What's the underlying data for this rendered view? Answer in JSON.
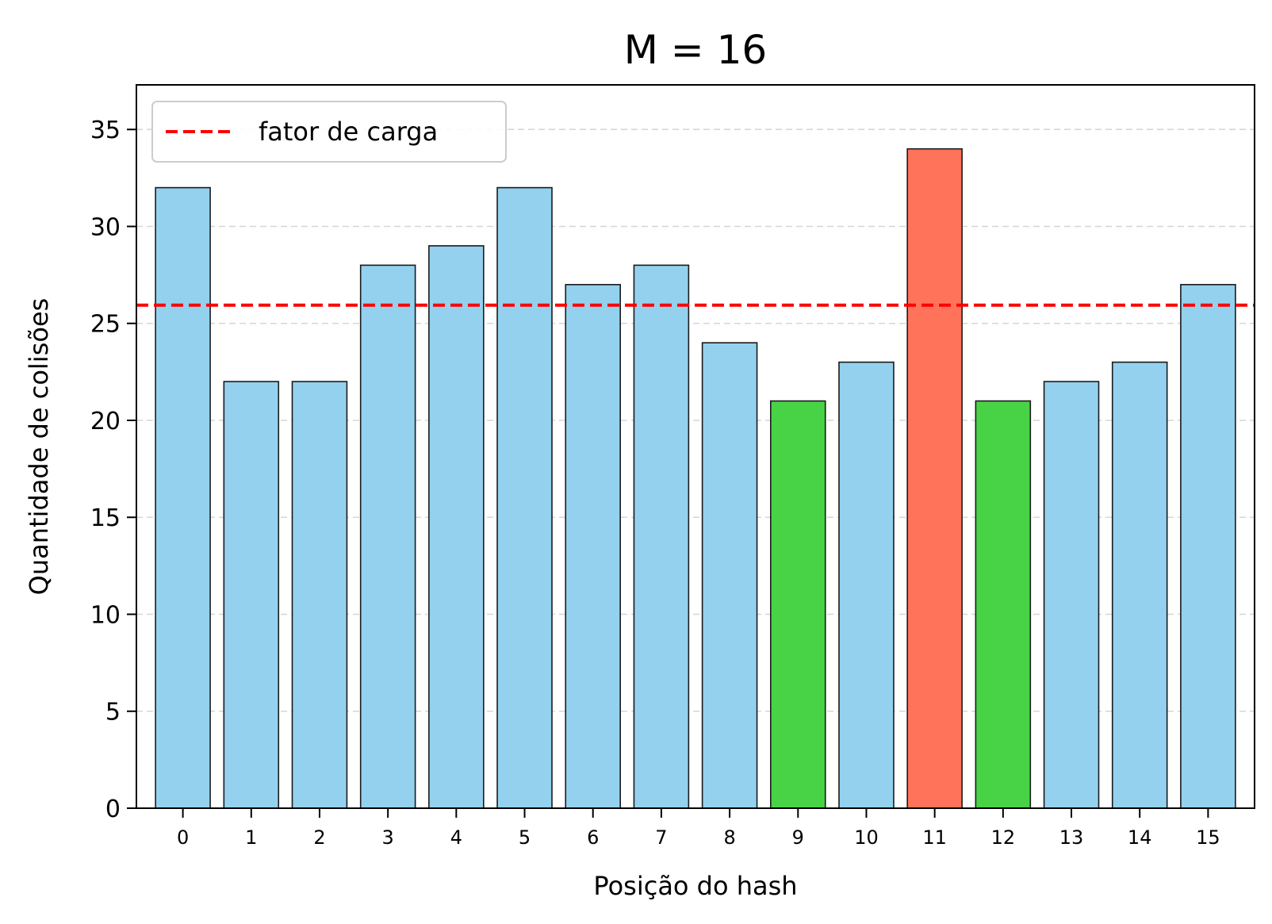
{
  "chart_data": {
    "type": "bar",
    "title": "M = 16",
    "xlabel": "Posição do hash",
    "ylabel": "Quantidade de colisões",
    "categories": [
      "0",
      "1",
      "2",
      "3",
      "4",
      "5",
      "6",
      "7",
      "8",
      "9",
      "10",
      "11",
      "12",
      "13",
      "14",
      "15"
    ],
    "values": [
      32,
      22,
      22,
      28,
      29,
      32,
      27,
      28,
      24,
      21,
      23,
      34,
      21,
      22,
      23,
      27
    ],
    "bar_colors": [
      "#94d1ee",
      "#94d1ee",
      "#94d1ee",
      "#94d1ee",
      "#94d1ee",
      "#94d1ee",
      "#94d1ee",
      "#94d1ee",
      "#94d1ee",
      "#48d347",
      "#94d1ee",
      "#ff735a",
      "#48d347",
      "#94d1ee",
      "#94d1ee",
      "#94d1ee"
    ],
    "bar_edge_color": "#1a1a1a",
    "ylim": [
      0,
      37.3
    ],
    "yticks": [
      0,
      5,
      10,
      15,
      20,
      25,
      30,
      35
    ],
    "grid": "y-dashed",
    "reference_line": {
      "label": "fator de carga",
      "value": 25.94,
      "color": "#ff0000",
      "style": "dashed"
    },
    "legend": {
      "position": "upper-left",
      "entries": [
        "fator de carga"
      ]
    }
  }
}
